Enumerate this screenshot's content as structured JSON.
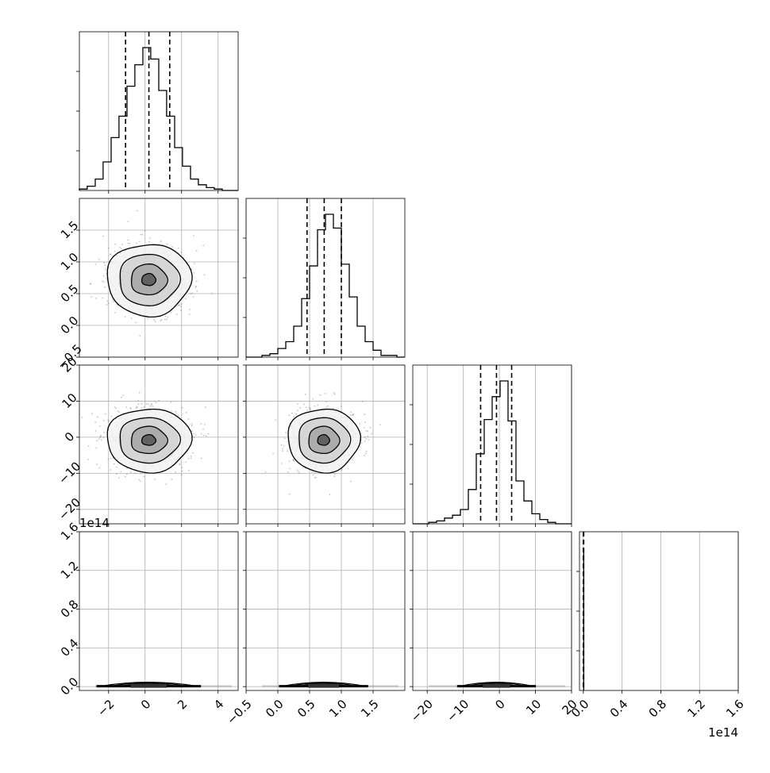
{
  "chart_data": {
    "type": "scatter",
    "subtype": "corner-plot",
    "grid": true,
    "quantile_lines": "dashed",
    "sample_color": "#555555",
    "line_color": "#000000",
    "parameters": [
      {
        "range": [
          -3.6,
          5.1
        ],
        "ticks": [
          -2,
          0,
          2,
          4
        ],
        "tick_labels": [
          "−2",
          "0",
          "2",
          "4"
        ],
        "quantiles": [
          -1.07,
          0.21,
          1.35
        ],
        "center": 0.2,
        "sigma": 1.1
      },
      {
        "range": [
          -0.5,
          2.0
        ],
        "ticks": [
          -0.5,
          0.0,
          0.5,
          1.0,
          1.5
        ],
        "tick_labels": [
          "−0.5",
          "0.0",
          "0.5",
          "1.0",
          "1.5"
        ],
        "quantiles": [
          0.46,
          0.73,
          1.0
        ],
        "center": 0.72,
        "sigma": 0.27
      },
      {
        "range": [
          -24,
          20
        ],
        "ticks": [
          -20,
          -10,
          0,
          10,
          20
        ],
        "tick_labels": [
          "−20",
          "−10",
          "0",
          "10",
          "20"
        ],
        "quantiles": [
          -5.2,
          -0.8,
          3.4
        ],
        "center": -0.8,
        "sigma": 4.2
      },
      {
        "range": [
          -0.04,
          1.6
        ],
        "ticks": [
          0.0,
          0.4,
          0.8,
          1.2,
          1.6
        ],
        "tick_labels": [
          "0.0",
          "0.4",
          "0.8",
          "1.2",
          "1.6"
        ],
        "quantiles": [
          0.0,
          0.002,
          0.004
        ],
        "offset_label": "1e14"
      }
    ],
    "histograms": [
      {
        "param": 0,
        "bins": [
          -3.6,
          -3.17,
          -2.73,
          -2.3,
          -1.86,
          -1.43,
          -0.99,
          -0.56,
          -0.12,
          0.31,
          0.75,
          1.18,
          1.62,
          2.05,
          2.49,
          2.92,
          3.36,
          3.79,
          4.23,
          4.66,
          5.1
        ],
        "counts": [
          1,
          3,
          8,
          20,
          37,
          52,
          73,
          88,
          100,
          92,
          70,
          52,
          30,
          17,
          8,
          4,
          2,
          1,
          0,
          0
        ]
      },
      {
        "param": 1,
        "bins": [
          -0.5,
          -0.375,
          -0.25,
          -0.125,
          0.0,
          0.125,
          0.25,
          0.375,
          0.5,
          0.625,
          0.75,
          0.875,
          1.0,
          1.125,
          1.25,
          1.375,
          1.5,
          1.625,
          1.75,
          1.875,
          2.0
        ],
        "counts": [
          0,
          0,
          1,
          2,
          5,
          9,
          18,
          34,
          53,
          74,
          83,
          75,
          54,
          35,
          18,
          9,
          4,
          1,
          1,
          0
        ]
      },
      {
        "param": 2,
        "bins": [
          -24,
          -21.8,
          -19.6,
          -17.4,
          -15.2,
          -13,
          -10.8,
          -8.6,
          -6.4,
          -4.2,
          -2,
          0.2,
          2.4,
          4.6,
          6.8,
          9,
          11.2,
          13.4,
          15.6,
          17.8,
          20
        ],
        "counts": [
          0,
          0,
          1,
          2,
          4,
          6,
          10,
          24,
          49,
          73,
          89,
          100,
          72,
          30,
          16,
          7,
          3,
          1,
          0,
          0
        ]
      },
      {
        "param": 3,
        "spike_at": 0.004,
        "spike_height": 1.0
      }
    ],
    "pairs": [
      {
        "row": 1,
        "col": 0,
        "contours": [
          [
            0.35,
            0.35
          ],
          [
            0.9,
            0.9
          ],
          [
            1.5,
            1.5
          ],
          [
            2.1,
            2.1
          ]
        ],
        "center": [
          0.2,
          0.72
        ]
      },
      {
        "row": 2,
        "col": 0,
        "contours": [
          [
            0.35,
            0.35
          ],
          [
            0.9,
            0.9
          ],
          [
            1.5,
            1.5
          ],
          [
            2.1,
            2.1
          ]
        ],
        "center": [
          0.2,
          -0.8
        ]
      },
      {
        "row": 2,
        "col": 1,
        "contours": [
          [
            0.35,
            0.35
          ],
          [
            0.9,
            0.9
          ],
          [
            1.5,
            1.5
          ],
          [
            2.1,
            2.1
          ]
        ],
        "center": [
          0.72,
          -0.8
        ]
      },
      {
        "row": 3,
        "col": 0,
        "degenerate": true,
        "center": [
          0.2,
          0.004
        ]
      },
      {
        "row": 3,
        "col": 1,
        "degenerate": true,
        "center": [
          0.72,
          0.004
        ]
      },
      {
        "row": 3,
        "col": 2,
        "degenerate": true,
        "center": [
          -0.8,
          0.004
        ]
      }
    ]
  }
}
